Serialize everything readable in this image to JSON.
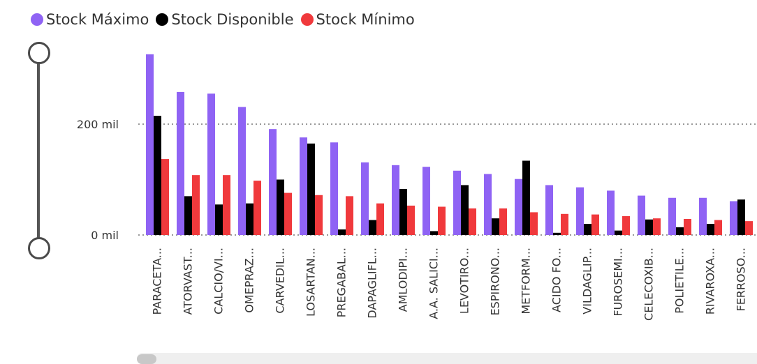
{
  "legend": {
    "items": [
      {
        "label": "Stock Máximo",
        "color": "#8f63f4"
      },
      {
        "label": "Stock Disponible",
        "color": "#000000"
      },
      {
        "label": "Stock Mínimo",
        "color": "#f0393c"
      }
    ]
  },
  "chart_data": {
    "type": "bar",
    "categories": [
      "PARACETA...",
      "ATORVAST...",
      "CALCIO/VI...",
      "OMEPRAZ...",
      "CARVEDIL...",
      "LOSARTAN...",
      "PREGABAL...",
      "DAPAGLIFL...",
      "AMLODIPI...",
      "A.A. SALICI...",
      "LEVOTIRO...",
      "ESPIRONO...",
      "METFORM...",
      "ACIDO FO...",
      "VILDAGLIP...",
      "FUROSEMI...",
      "CELECOXIB...",
      "POLIETILE...",
      "RIVAROXA...",
      "FERROSO..."
    ],
    "series": [
      {
        "name": "Stock Máximo",
        "color": "#8f63f4",
        "values": [
          326,
          258,
          255,
          231,
          191,
          176,
          167,
          131,
          126,
          123,
          116,
          110,
          101,
          90,
          86,
          80,
          71,
          67,
          67,
          61
        ]
      },
      {
        "name": "Stock Disponible",
        "color": "#000000",
        "values": [
          215,
          70,
          55,
          57,
          100,
          165,
          10,
          27,
          83,
          7,
          90,
          30,
          134,
          4,
          20,
          8,
          28,
          14,
          20,
          64
        ]
      },
      {
        "name": "Stock Mínimo",
        "color": "#f0393c",
        "values": [
          137,
          108,
          108,
          98,
          76,
          72,
          70,
          57,
          53,
          51,
          48,
          48,
          41,
          38,
          37,
          34,
          30,
          29,
          27,
          25
        ]
      }
    ],
    "yticks": [
      {
        "value": 0,
        "label": "0 mil"
      },
      {
        "value": 200,
        "label": "200 mil"
      }
    ],
    "ylim": [
      0,
      330
    ],
    "grid": "dotted",
    "legend_position": "top-left"
  }
}
